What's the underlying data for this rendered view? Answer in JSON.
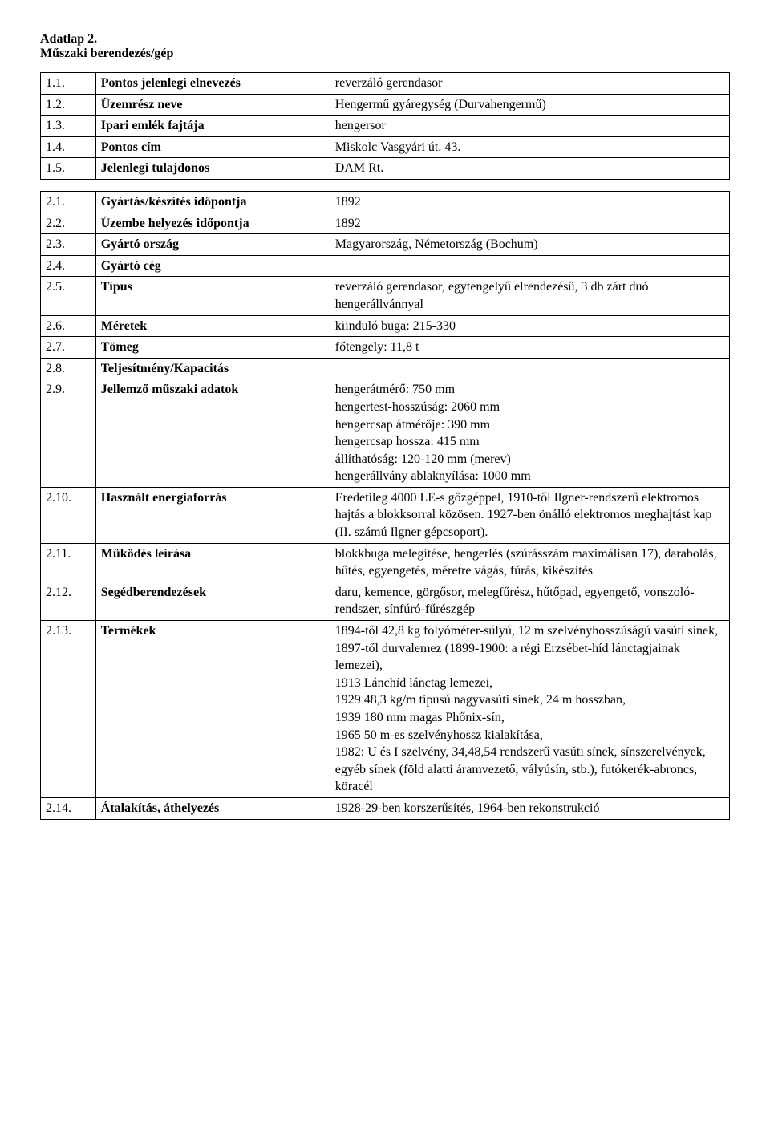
{
  "header": {
    "line1": "Adatlap 2.",
    "line2": "Műszaki berendezés/gép"
  },
  "table1": {
    "rows": [
      {
        "num": "1.1.",
        "label": "Pontos jelenlegi elnevezés",
        "value": "reverzáló gerendasor"
      },
      {
        "num": "1.2.",
        "label": "Üzemrész neve",
        "value": "Hengermű gyáregység (Durvahengermű)"
      },
      {
        "num": "1.3.",
        "label": "Ipari emlék fajtája",
        "value": "hengersor"
      },
      {
        "num": "1.4.",
        "label": "Pontos cím",
        "value": "Miskolc Vasgyári út. 43."
      },
      {
        "num": "1.5.",
        "label": "Jelenlegi tulajdonos",
        "value": "DAM Rt."
      }
    ]
  },
  "table2": {
    "rows": [
      {
        "num": "2.1.",
        "label": "Gyártás/készítés időpontja",
        "value": "1892"
      },
      {
        "num": "2.2.",
        "label": "Üzembe helyezés időpontja",
        "value": "1892"
      },
      {
        "num": "2.3.",
        "label": "Gyártó ország",
        "value": "Magyarország, Németország (Bochum)"
      },
      {
        "num": "2.4.",
        "label": "Gyártó cég",
        "value": ""
      },
      {
        "num": "2.5.",
        "label": "Típus",
        "value": "reverzáló gerendasor, egytengelyű elrendezésű, 3 db zárt duó hengerállvánnyal"
      },
      {
        "num": "2.6.",
        "label": "Méretek",
        "value": "kiinduló buga: 215-330"
      },
      {
        "num": "2.7.",
        "label": "Tömeg",
        "value": "főtengely: 11,8 t"
      },
      {
        "num": "2.8.",
        "label": "Teljesítmény/Kapacitás",
        "value": ""
      },
      {
        "num": "2.9.",
        "label": "Jellemző műszaki adatok",
        "value": "hengerátmérő: 750 mm\nhengertest-hosszúság: 2060 mm\nhengercsap átmérője: 390 mm\nhengercsap hossza: 415 mm\nállíthatóság: 120-120 mm (merev)\nhengerállvány ablaknyílása: 1000 mm"
      },
      {
        "num": "2.10.",
        "label": "Használt energiaforrás",
        "value": "Eredetileg 4000 LE-s gőzgéppel, 1910-től Ilgner-rendszerű elektromos hajtás a blokksorral közösen. 1927-ben önálló elektromos meghajtást kap (II. számú Ilgner gépcsoport)."
      },
      {
        "num": "2.11.",
        "label": "Működés leírása",
        "value": "blokkbuga melegítése, hengerlés (szúrásszám maximálisan 17), darabolás, hűtés, egyengetés, méretre vágás, fúrás, kikészítés"
      },
      {
        "num": "2.12.",
        "label": "Segédberendezések",
        "value": "daru, kemence, görgősor, melegfűrész, hűtőpad, egyengető, vonszoló-rendszer, sínfúró-fűrészgép"
      },
      {
        "num": "2.13.",
        "label": "Termékek",
        "value": "1894-től 42,8 kg folyóméter-súlyú, 12 m szelvényhosszúságú vasúti sínek,\n1897-től durvalemez (1899-1900: a régi Erzsébet-híd lánctagjainak lemezei),\n1913 Lánchíd lánctag lemezei,\n1929 48,3 kg/m típusú nagyvasúti sínek, 24 m hosszban,\n1939 180 mm magas Phőnix-sín,\n1965 50 m-es szelvényhossz kialakítása,\n1982: U és I szelvény, 34,48,54 rendszerű vasúti sínek, sínszerelvények, egyéb sínek (föld alatti áramvezető, vályúsín, stb.), futókerék-abroncs, köracél"
      },
      {
        "num": "2.14.",
        "label": "Átalakítás, áthelyezés",
        "value": "1928-29-ben korszerűsítés, 1964-ben rekonstrukció"
      }
    ]
  }
}
